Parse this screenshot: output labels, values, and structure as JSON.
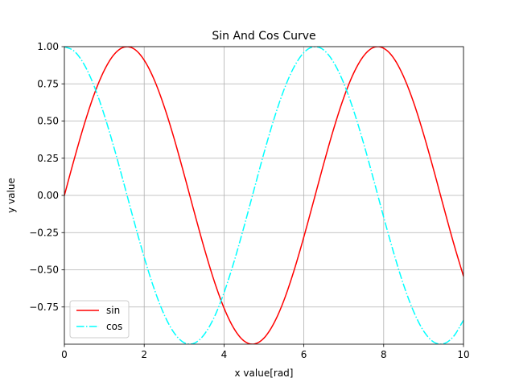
{
  "chart_data": {
    "type": "line",
    "title": "Sin And Cos Curve",
    "xlabel": "x value[rad]",
    "ylabel": "y value",
    "xlim": [
      0,
      10
    ],
    "ylim": [
      -1,
      1
    ],
    "grid": true,
    "legend_position": "lower-left",
    "x_ticks": [
      0,
      2,
      4,
      6,
      8,
      10
    ],
    "x_tick_labels": [
      "0",
      "2",
      "4",
      "6",
      "8",
      "10"
    ],
    "y_ticks": [
      -0.75,
      -0.5,
      -0.25,
      0.0,
      0.25,
      0.5,
      0.75,
      1.0
    ],
    "y_tick_labels": [
      "−0.75",
      "−0.50",
      "−0.25",
      "0.00",
      "0.25",
      "0.50",
      "0.75",
      "1.00"
    ],
    "x": [
      0,
      0.25,
      0.5,
      0.75,
      1.0,
      1.25,
      1.5,
      1.75,
      2.0,
      2.25,
      2.5,
      2.75,
      3.0,
      3.25,
      3.5,
      3.75,
      4.0,
      4.25,
      4.5,
      4.75,
      5.0,
      5.25,
      5.5,
      5.75,
      6.0,
      6.25,
      6.5,
      6.75,
      7.0,
      7.25,
      7.5,
      7.75,
      8.0,
      8.25,
      8.5,
      8.75,
      9.0,
      9.25,
      9.5,
      9.75,
      10.0
    ],
    "series": [
      {
        "name": "sin",
        "color": "#ff0000",
        "style": "solid",
        "values": [
          0.0,
          0.247,
          0.479,
          0.682,
          0.841,
          0.949,
          0.997,
          0.984,
          0.909,
          0.778,
          0.598,
          0.382,
          0.141,
          -0.108,
          -0.351,
          -0.572,
          -0.757,
          -0.895,
          -0.978,
          -0.999,
          -0.959,
          -0.859,
          -0.706,
          -0.508,
          -0.279,
          -0.033,
          0.215,
          0.45,
          0.657,
          0.823,
          0.938,
          0.995,
          0.989,
          0.923,
          0.798,
          0.625,
          0.412,
          0.174,
          -0.075,
          -0.319,
          -0.544
        ]
      },
      {
        "name": "cos",
        "color": "#00ffff",
        "style": "dashdot",
        "values": [
          1.0,
          0.969,
          0.878,
          0.732,
          0.54,
          0.315,
          0.071,
          -0.178,
          -0.416,
          -0.628,
          -0.801,
          -0.924,
          -0.99,
          -0.994,
          -0.936,
          -0.821,
          -0.654,
          -0.446,
          -0.211,
          0.037,
          0.284,
          0.512,
          0.709,
          0.861,
          0.96,
          0.999,
          0.977,
          0.893,
          0.754,
          0.568,
          0.347,
          0.104,
          -0.146,
          -0.385,
          -0.602,
          -0.78,
          -0.911,
          -0.985,
          -0.997,
          -0.948,
          -0.839
        ]
      }
    ]
  }
}
